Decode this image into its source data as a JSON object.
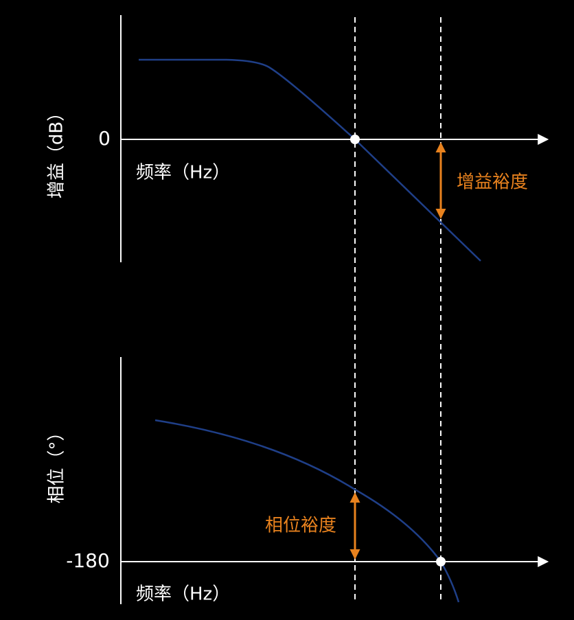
{
  "gain_plot": {
    "y_axis_label": "增益（dB）",
    "zero_label": "0",
    "x_axis_label": "频率（Hz）",
    "margin_label": "增益裕度"
  },
  "phase_plot": {
    "y_axis_label": "相位（°）",
    "zero_label": "-180",
    "x_axis_label": "频率（Hz）",
    "margin_label": "相位裕度"
  }
}
